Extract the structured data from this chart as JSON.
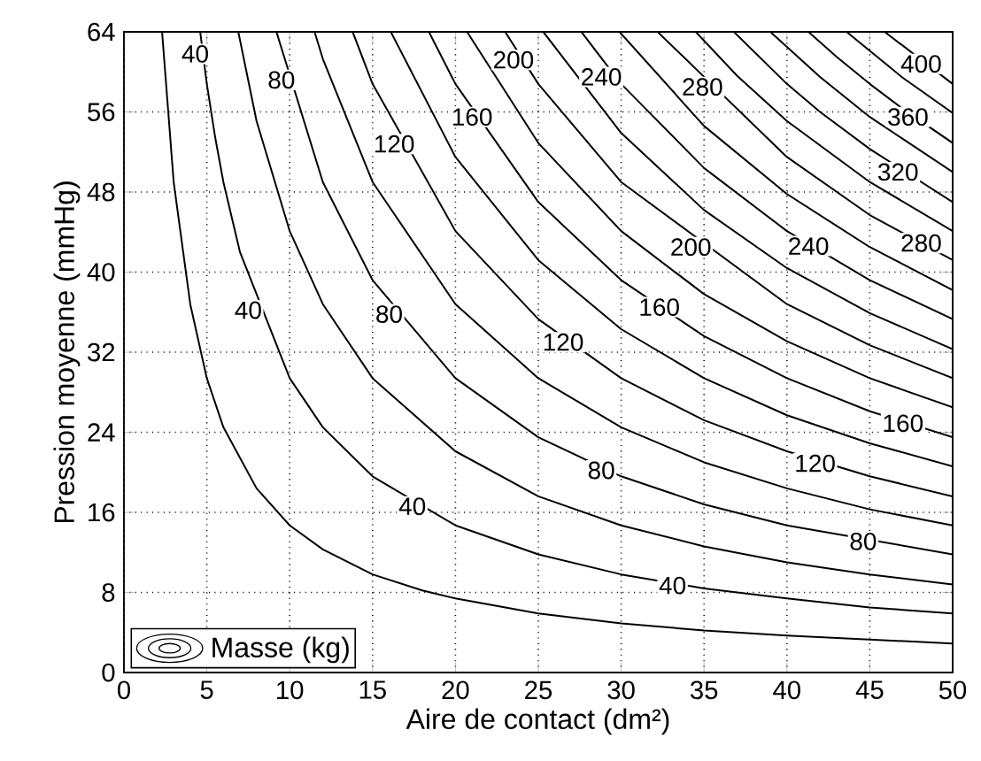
{
  "chart_data": {
    "type": "line",
    "xlabel": "Aire de contact (dm²)",
    "ylabel": "Pression moyenne (mmHg)",
    "legend_title": "Masse (kg)",
    "grid": true,
    "xlim": [
      0,
      50
    ],
    "ylim": [
      0,
      64
    ],
    "xticks": [
      0,
      5,
      10,
      15,
      20,
      25,
      30,
      35,
      40,
      45,
      50
    ],
    "yticks": [
      0,
      8,
      16,
      24,
      32,
      40,
      48,
      56,
      64
    ],
    "series": [
      {
        "color": "#000000",
        "x": [
          2.3,
          3,
          4,
          5,
          6,
          8,
          10,
          12,
          15,
          18,
          20,
          25,
          30,
          35,
          40,
          45,
          50
        ],
        "values": [
          64,
          49.0,
          36.8,
          29.4,
          24.5,
          18.4,
          14.7,
          12.3,
          9.8,
          8.2,
          7.4,
          5.9,
          4.9,
          4.2,
          3.7,
          3.3,
          2.9
        ]
      },
      {
        "color": "#000000",
        "x": [
          4.6,
          5,
          5.5,
          6,
          7,
          10,
          12,
          15,
          20,
          25,
          30,
          35,
          40,
          45,
          50
        ],
        "values": [
          64,
          58.8,
          53.5,
          49.0,
          42.0,
          29.4,
          24.5,
          19.6,
          14.7,
          11.8,
          9.8,
          8.4,
          7.4,
          6.5,
          5.9
        ]
      },
      {
        "color": "#000000",
        "x": [
          6.9,
          8,
          10,
          12,
          15,
          20,
          25,
          30,
          35,
          40,
          45,
          50
        ],
        "values": [
          64,
          55.1,
          44.1,
          36.8,
          29.4,
          22.1,
          17.6,
          14.7,
          12.6,
          11.0,
          9.8,
          8.8
        ]
      },
      {
        "color": "#000000",
        "x": [
          9.2,
          12,
          15,
          20,
          25,
          30,
          35,
          40,
          50
        ],
        "values": [
          64,
          49.0,
          39.2,
          29.4,
          23.5,
          19.6,
          16.8,
          14.7,
          11.8
        ]
      },
      {
        "color": "#000000",
        "x": [
          11.5,
          12,
          15,
          20,
          25,
          30,
          35,
          40,
          45,
          50
        ],
        "values": [
          64,
          61.3,
          49.0,
          36.8,
          29.4,
          24.5,
          21.0,
          18.4,
          16.3,
          14.7
        ]
      },
      {
        "color": "#000000",
        "x": [
          13.8,
          15,
          20,
          25,
          30,
          35,
          40,
          45,
          50
        ],
        "values": [
          64,
          58.8,
          44.1,
          35.3,
          29.4,
          25.2,
          22.1,
          19.6,
          17.6
        ]
      },
      {
        "color": "#000000",
        "x": [
          16.1,
          20,
          25,
          30,
          35,
          40,
          45,
          50
        ],
        "values": [
          64,
          51.5,
          41.2,
          34.3,
          29.4,
          25.7,
          22.9,
          20.6
        ]
      },
      {
        "color": "#000000",
        "x": [
          18.4,
          20,
          25,
          30,
          35,
          40,
          45,
          50
        ],
        "values": [
          64,
          58.8,
          47.0,
          39.2,
          33.6,
          29.4,
          26.1,
          23.5
        ]
      },
      {
        "color": "#000000",
        "x": [
          20.7,
          25,
          30,
          35,
          40,
          45,
          50
        ],
        "values": [
          64,
          52.9,
          44.1,
          37.8,
          33.1,
          29.4,
          26.5
        ]
      },
      {
        "color": "#000000",
        "x": [
          23.0,
          25,
          30,
          40,
          45,
          50
        ],
        "values": [
          64,
          58.8,
          49.0,
          36.8,
          32.7,
          29.4
        ]
      },
      {
        "color": "#000000",
        "x": [
          25.3,
          30,
          35,
          40,
          45,
          50
        ],
        "values": [
          64,
          53.9,
          46.2,
          40.4,
          35.9,
          32.3
        ]
      },
      {
        "color": "#000000",
        "x": [
          27.6,
          30,
          35,
          40,
          45,
          50
        ],
        "values": [
          64,
          58.8,
          50.4,
          44.1,
          39.2,
          35.3
        ]
      },
      {
        "color": "#000000",
        "x": [
          29.9,
          35,
          40,
          45,
          50
        ],
        "values": [
          64,
          54.6,
          47.8,
          42.5,
          38.2
        ]
      },
      {
        "color": "#000000",
        "x": [
          32.2,
          40,
          45,
          50
        ],
        "values": [
          64,
          51.5,
          45.7,
          41.2
        ]
      },
      {
        "color": "#000000",
        "x": [
          34.5,
          37,
          40,
          45,
          50
        ],
        "values": [
          64,
          59.6,
          55.1,
          49.0,
          44.1
        ]
      },
      {
        "color": "#000000",
        "x": [
          36.8,
          40,
          42,
          45,
          50
        ],
        "values": [
          64,
          58.8,
          56.0,
          52.3,
          47.0
        ]
      },
      {
        "color": "#000000",
        "x": [
          39.0,
          42,
          45,
          50
        ],
        "values": [
          64,
          59.5,
          55.5,
          50.0
        ]
      },
      {
        "color": "#000000",
        "x": [
          41.3,
          43,
          45,
          47,
          50
        ],
        "values": [
          64,
          61.5,
          58.8,
          56.3,
          52.9
        ]
      },
      {
        "color": "#000000",
        "x": [
          43.6,
          47,
          50
        ],
        "values": [
          64,
          59.4,
          55.9
        ]
      },
      {
        "color": "#000000",
        "x": [
          45.9,
          50
        ],
        "values": [
          64,
          58.8
        ]
      }
    ],
    "annotations": [
      {
        "text": "40",
        "x": 4.3,
        "y": 61.8
      },
      {
        "text": "80",
        "x": 9.5,
        "y": 59.2
      },
      {
        "text": "40",
        "x": 7.5,
        "y": 36.2
      },
      {
        "text": "80",
        "x": 16.0,
        "y": 35.8
      },
      {
        "text": "120",
        "x": 16.3,
        "y": 52.8
      },
      {
        "text": "160",
        "x": 21.0,
        "y": 55.5
      },
      {
        "text": "200",
        "x": 23.5,
        "y": 61.2
      },
      {
        "text": "240",
        "x": 28.8,
        "y": 59.5
      },
      {
        "text": "280",
        "x": 34.9,
        "y": 58.5
      },
      {
        "text": "400",
        "x": 48.1,
        "y": 60.8
      },
      {
        "text": "360",
        "x": 47.3,
        "y": 55.5
      },
      {
        "text": "320",
        "x": 46.7,
        "y": 50.0
      },
      {
        "text": "280",
        "x": 48.1,
        "y": 42.9
      },
      {
        "text": "240",
        "x": 41.3,
        "y": 42.6
      },
      {
        "text": "200",
        "x": 34.2,
        "y": 42.5
      },
      {
        "text": "160",
        "x": 32.3,
        "y": 36.5
      },
      {
        "text": "120",
        "x": 26.5,
        "y": 33.0
      },
      {
        "text": "160",
        "x": 47.0,
        "y": 24.9
      },
      {
        "text": "120",
        "x": 41.7,
        "y": 20.9
      },
      {
        "text": "80",
        "x": 28.8,
        "y": 20.2
      },
      {
        "text": "80",
        "x": 44.6,
        "y": 13.1
      },
      {
        "text": "40",
        "x": 33.1,
        "y": 8.7
      },
      {
        "text": "40",
        "x": 17.4,
        "y": 16.6
      }
    ]
  }
}
